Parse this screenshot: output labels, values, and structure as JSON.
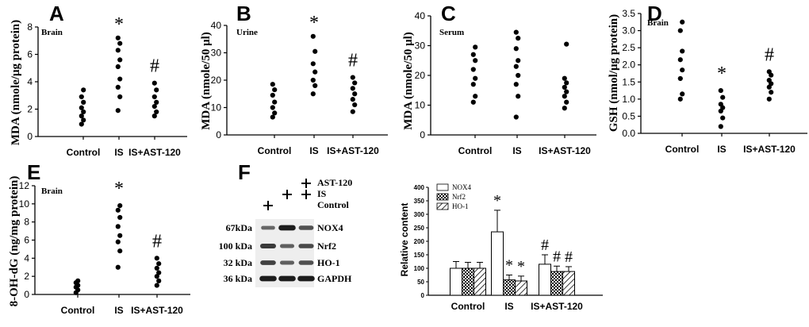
{
  "chart_data": [
    {
      "id": "A",
      "type": "scatter",
      "panel_label": "A",
      "tag": "Brain",
      "ylabel": "MDA (nmole/μg protein)",
      "ylim": [
        0,
        8
      ],
      "yticks": [
        0,
        2,
        4,
        6,
        8
      ],
      "categories": [
        "Control",
        "IS",
        "IS+AST-120"
      ],
      "points": [
        [
          0.9,
          1.2,
          1.5,
          1.8,
          2.1,
          2.5,
          2.9,
          3.4
        ],
        [
          1.9,
          2.9,
          3.6,
          4.2,
          5.1,
          5.6,
          6.3,
          6.8,
          7.2
        ],
        [
          1.5,
          1.8,
          2.2,
          2.5,
          2.9,
          3.4,
          3.9
        ]
      ],
      "annotations": [
        "",
        "*",
        "#"
      ]
    },
    {
      "id": "B",
      "type": "scatter",
      "panel_label": "B",
      "tag": "Urine",
      "ylabel": "MDA (nmole/50 μl)",
      "ylim": [
        0,
        40
      ],
      "yticks": [
        0,
        10,
        20,
        30,
        40
      ],
      "categories": [
        "Control",
        "IS",
        "IS+AST-120"
      ],
      "points": [
        [
          6.5,
          8,
          10,
          12,
          14.5,
          16.5,
          18.5
        ],
        [
          15,
          18,
          20,
          23,
          26,
          30.5,
          36
        ],
        [
          8.5,
          11,
          13,
          15,
          17,
          19,
          21
        ]
      ],
      "annotations": [
        "",
        "*",
        "#"
      ]
    },
    {
      "id": "C",
      "type": "scatter",
      "panel_label": "C",
      "tag": "Serum",
      "ylabel": "MDA (nmole/50 μl)",
      "ylim": [
        0,
        40
      ],
      "yticks": [
        0,
        10,
        20,
        30,
        40
      ],
      "categories": [
        "Control",
        "IS",
        "IS+AST-120"
      ],
      "points": [
        [
          11,
          13,
          17,
          19,
          22,
          25,
          27,
          29.5
        ],
        [
          6,
          13,
          17,
          20,
          23,
          25,
          29,
          32.5,
          34.5
        ],
        [
          9,
          11,
          13,
          14.5,
          16,
          17.5,
          19,
          30.5
        ]
      ],
      "annotations": [
        "",
        "",
        ""
      ]
    },
    {
      "id": "D",
      "type": "scatter",
      "panel_label": "D",
      "tag": "Brain",
      "ylabel": "GSH (nmol/μg protein)",
      "ylim": [
        0,
        3.5
      ],
      "yticks": [
        "0.0",
        "0.5",
        "1.0",
        "1.5",
        "2.0",
        "2.5",
        "3.0",
        "3.5"
      ],
      "categories": [
        "Control",
        "IS",
        "IS+AST-120"
      ],
      "points": [
        [
          1.0,
          1.15,
          1.6,
          1.85,
          2.15,
          2.4,
          3.0,
          3.25
        ],
        [
          0.2,
          0.45,
          0.65,
          0.75,
          0.85,
          1.05,
          1.25
        ],
        [
          1.0,
          1.2,
          1.35,
          1.45,
          1.55,
          1.7,
          1.8
        ]
      ],
      "annotations": [
        "",
        "*",
        "#"
      ]
    },
    {
      "id": "E",
      "type": "scatter",
      "panel_label": "E",
      "tag": "Brain",
      "ylabel": "8-OH-dG (ng/mg protein)",
      "ylim": [
        0,
        12
      ],
      "yticks": [
        0,
        2,
        4,
        6,
        8,
        10,
        12
      ],
      "categories": [
        "Control",
        "IS",
        "IS+AST-120"
      ],
      "points": [
        [
          0.2,
          0.5,
          0.8,
          1.0,
          1.3,
          1.5
        ],
        [
          3.0,
          4.8,
          5.8,
          6.5,
          7.5,
          8.5,
          9.3,
          9.8
        ],
        [
          1.0,
          1.5,
          2.0,
          2.4,
          2.9,
          3.4,
          4.0
        ]
      ],
      "annotations": [
        "",
        "*",
        "#"
      ]
    },
    {
      "id": "F",
      "type": "bar",
      "panel_label": "F",
      "ylabel": "Relative content",
      "ylim": [
        0,
        400
      ],
      "yticks": [
        0,
        50,
        100,
        150,
        200,
        250,
        300,
        350,
        400
      ],
      "categories": [
        "Control",
        "IS",
        "IS+AST-120"
      ],
      "series": [
        {
          "name": "NOX4",
          "values": [
            100,
            235,
            115
          ],
          "errors": [
            25,
            80,
            35
          ],
          "marks": [
            "",
            "*",
            "#"
          ]
        },
        {
          "name": "Nrf2",
          "values": [
            100,
            57,
            88
          ],
          "errors": [
            22,
            18,
            20
          ],
          "marks": [
            "",
            "*",
            "#"
          ]
        },
        {
          "name": "HO-1",
          "values": [
            100,
            53,
            88
          ],
          "errors": [
            22,
            18,
            18
          ],
          "marks": [
            "",
            "*",
            "#"
          ]
        }
      ]
    }
  ],
  "blot": {
    "treatments": [
      "AST-120",
      "IS",
      "Control"
    ],
    "lanes": [
      {
        "AST-120": "",
        "IS": "",
        "Control": "+"
      },
      {
        "AST-120": "",
        "IS": "+",
        "Control": ""
      },
      {
        "AST-120": "+",
        "IS": "+",
        "Control": ""
      }
    ],
    "rows": [
      {
        "kda": "67kDa",
        "protein": "NOX4",
        "intensity": [
          0.45,
          0.95,
          0.6
        ]
      },
      {
        "kda": "100 kDa",
        "protein": "Nrf2",
        "intensity": [
          0.75,
          0.5,
          0.65
        ]
      },
      {
        "kda": "32 kDa",
        "protein": "HO-1",
        "intensity": [
          0.7,
          0.5,
          0.6
        ]
      },
      {
        "kda": "36 kDa",
        "protein": "GAPDH",
        "intensity": [
          0.95,
          0.95,
          0.95
        ]
      }
    ]
  }
}
